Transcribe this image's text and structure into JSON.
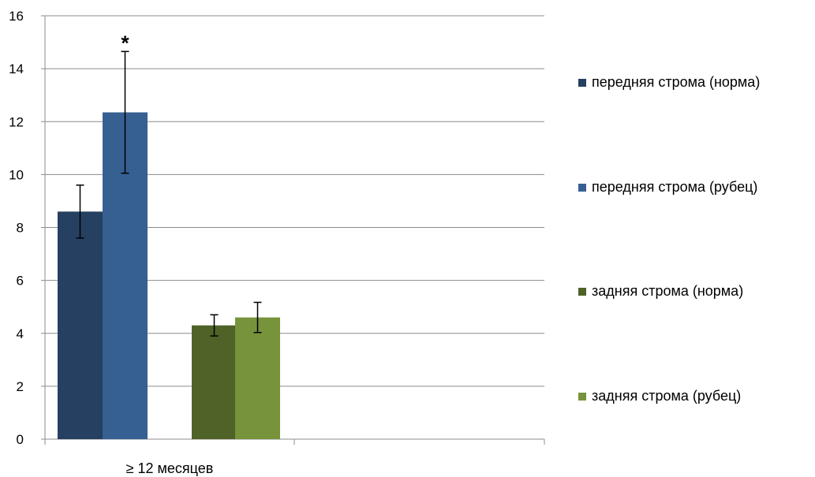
{
  "chart_data": {
    "type": "bar",
    "categories": [
      "≥ 12 месяцев"
    ],
    "series": [
      {
        "name": "передняя строма (норма)",
        "values": [
          8.6
        ],
        "error": [
          1.0
        ],
        "color": "#254061"
      },
      {
        "name": "передняя строма (рубец)",
        "values": [
          12.35
        ],
        "error": [
          2.3
        ],
        "color": "#376092",
        "annotation": "*"
      },
      {
        "name": "задняя строма (норма)",
        "values": [
          4.3
        ],
        "error": [
          0.4
        ],
        "color": "#4F6228"
      },
      {
        "name": "задняя строма (рубец)",
        "values": [
          4.6
        ],
        "error": [
          0.57
        ],
        "color": "#77933C"
      }
    ],
    "ylim": [
      0,
      16
    ],
    "yticks": [
      0,
      2,
      4,
      6,
      8,
      10,
      12,
      14,
      16
    ],
    "grid": true,
    "legend_position": "right",
    "title": "",
    "xlabel": "",
    "ylabel": ""
  }
}
